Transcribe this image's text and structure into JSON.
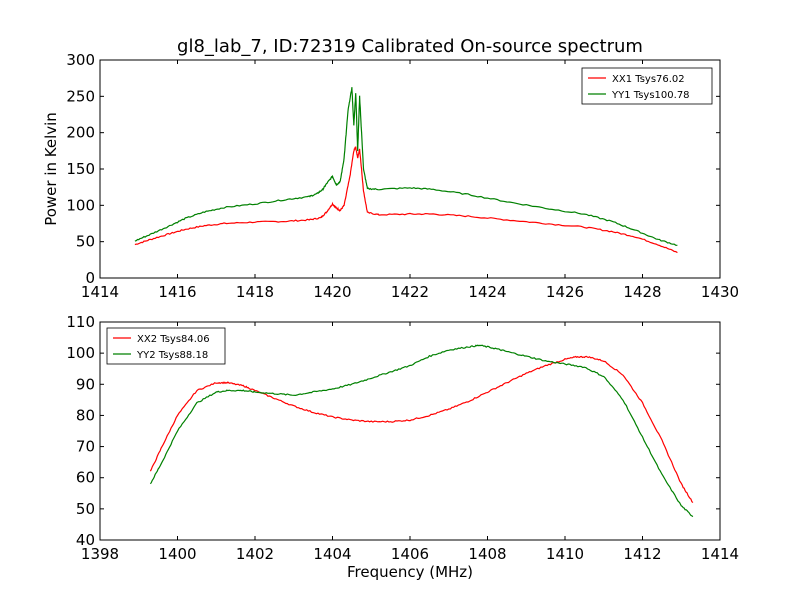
{
  "figure": {
    "title": "gl8_lab_7, ID:72319 Calibrated On-source spectrum"
  },
  "chart_data": [
    {
      "type": "line",
      "title": "gl8_lab_7, ID:72319 Calibrated On-source spectrum",
      "xlabel": "",
      "ylabel": "Power in Kelvin",
      "xlim": [
        1414,
        1430
      ],
      "ylim": [
        0,
        300
      ],
      "xticks": [
        1414,
        1416,
        1418,
        1420,
        1422,
        1424,
        1426,
        1428,
        1430
      ],
      "yticks": [
        0,
        50,
        100,
        150,
        200,
        250,
        300
      ],
      "legend_position": "top-right",
      "grid": false,
      "series": [
        {
          "name": "XX1 Tsys76.02",
          "color": "#ff0000",
          "x": [
            1414.9,
            1415.3,
            1415.8,
            1416.2,
            1416.7,
            1417.2,
            1418.0,
            1418.8,
            1419.4,
            1419.7,
            1419.85,
            1420.0,
            1420.1,
            1420.2,
            1420.3,
            1420.45,
            1420.55,
            1420.6,
            1420.65,
            1420.7,
            1420.8,
            1420.9,
            1421.2,
            1422.0,
            1422.6,
            1423.5,
            1424.5,
            1425.5,
            1426.5,
            1427.2,
            1427.8,
            1428.4,
            1428.9
          ],
          "y": [
            46,
            53,
            61,
            67,
            72,
            75,
            77,
            78,
            80,
            83,
            91,
            102,
            96,
            93,
            100,
            140,
            175,
            180,
            165,
            178,
            120,
            90,
            87,
            88,
            88,
            85,
            80,
            75,
            70,
            64,
            57,
            46,
            35
          ]
        },
        {
          "name": "YY1 Tsys100.78",
          "color": "#008000",
          "x": [
            1414.9,
            1415.3,
            1415.8,
            1416.2,
            1416.7,
            1417.2,
            1418.0,
            1418.8,
            1419.4,
            1419.6,
            1419.75,
            1419.85,
            1420.0,
            1420.1,
            1420.2,
            1420.3,
            1420.4,
            1420.5,
            1420.55,
            1420.6,
            1420.65,
            1420.7,
            1420.8,
            1420.9,
            1421.2,
            1422.0,
            1422.6,
            1423.5,
            1424.5,
            1425.5,
            1426.5,
            1427.2,
            1427.8,
            1428.4,
            1428.9
          ],
          "y": [
            51,
            60,
            72,
            82,
            91,
            97,
            102,
            108,
            112,
            116,
            122,
            130,
            140,
            128,
            133,
            165,
            230,
            262,
            210,
            255,
            175,
            250,
            150,
            123,
            122,
            124,
            122,
            115,
            105,
            96,
            88,
            78,
            66,
            53,
            45
          ]
        }
      ]
    },
    {
      "type": "line",
      "title": "",
      "xlabel": "Frequency (MHz)",
      "ylabel": "",
      "xlim": [
        1398,
        1414
      ],
      "ylim": [
        40,
        110
      ],
      "xticks": [
        1398,
        1400,
        1402,
        1404,
        1406,
        1408,
        1410,
        1412,
        1414
      ],
      "yticks": [
        40,
        50,
        60,
        70,
        80,
        90,
        100,
        110
      ],
      "legend_position": "top-left",
      "grid": false,
      "series": [
        {
          "name": "XX2 Tsys84.06",
          "color": "#ff0000",
          "x": [
            1399.3,
            1399.6,
            1400.0,
            1400.5,
            1401.0,
            1401.3,
            1401.7,
            1402.0,
            1402.5,
            1403.0,
            1403.5,
            1404.0,
            1404.5,
            1405.0,
            1405.5,
            1406.0,
            1406.5,
            1407.0,
            1407.5,
            1408.0,
            1408.5,
            1409.0,
            1409.5,
            1410.0,
            1410.3,
            1410.6,
            1411.0,
            1411.5,
            1412.0,
            1412.5,
            1413.0,
            1413.3
          ],
          "y": [
            62,
            70,
            80,
            88,
            90.5,
            90.5,
            89.5,
            88,
            85.5,
            83,
            81,
            79.5,
            78.5,
            78,
            78,
            78.5,
            80,
            82,
            84.5,
            87.5,
            90.5,
            93.5,
            96,
            98,
            98.8,
            98.8,
            97.5,
            93,
            84,
            72,
            58,
            52
          ]
        },
        {
          "name": "YY2 Tsys88.18",
          "color": "#008000",
          "x": [
            1399.3,
            1399.6,
            1400.0,
            1400.5,
            1401.0,
            1401.3,
            1401.7,
            1402.0,
            1402.5,
            1403.0,
            1403.5,
            1404.0,
            1404.5,
            1405.0,
            1405.5,
            1406.0,
            1406.5,
            1407.0,
            1407.5,
            1407.8,
            1408.2,
            1408.5,
            1409.0,
            1409.5,
            1410.0,
            1410.5,
            1411.0,
            1411.5,
            1412.0,
            1412.5,
            1413.0,
            1413.3
          ],
          "y": [
            58,
            65,
            75,
            84,
            87.5,
            88,
            88,
            87.5,
            87,
            86.5,
            87.5,
            88.5,
            90,
            92,
            94,
            96,
            99,
            101,
            102,
            102.5,
            101.5,
            100.5,
            99,
            97.5,
            96.5,
            95.5,
            92.5,
            85,
            73,
            61,
            51,
            47.5
          ]
        }
      ]
    }
  ]
}
